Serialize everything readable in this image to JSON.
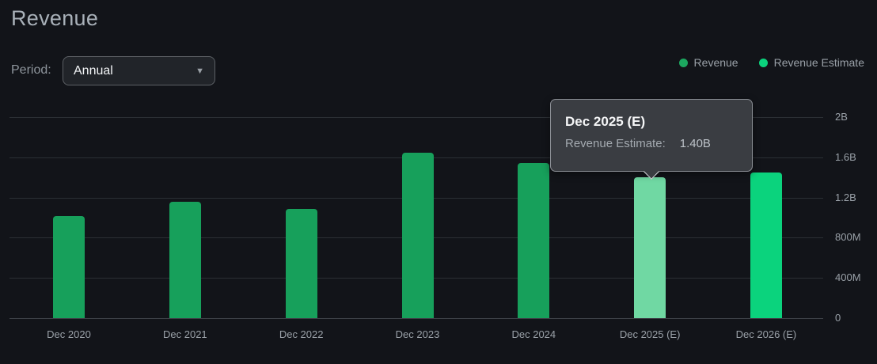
{
  "header": {
    "title": "Revenue"
  },
  "controls": {
    "period_label": "Period:",
    "period_value": "Annual",
    "dropdown_caret": "▼"
  },
  "legend": {
    "items": [
      {
        "label": "Revenue",
        "color": "#1ca75f"
      },
      {
        "label": "Revenue Estimate",
        "color": "#0bd37d"
      }
    ]
  },
  "tooltip": {
    "title": "Dec 2025 (E)",
    "label": "Revenue Estimate:",
    "value": "1.40B"
  },
  "chart_data": {
    "type": "bar",
    "title": "Revenue",
    "categories": [
      "Dec 2020",
      "Dec 2021",
      "Dec 2022",
      "Dec 2023",
      "Dec 2024",
      "Dec 2025 (E)",
      "Dec 2026 (E)"
    ],
    "series": [
      {
        "name": "Revenue",
        "values": [
          1.02,
          1.16,
          1.09,
          1.65,
          1.54,
          null,
          null
        ]
      },
      {
        "name": "Revenue Estimate",
        "values": [
          null,
          null,
          null,
          null,
          null,
          1.4,
          1.45
        ]
      }
    ],
    "unit": "billions",
    "ylim": [
      0,
      2
    ],
    "yticks": [
      {
        "label": "2B",
        "value": 2
      },
      {
        "label": "1.6B",
        "value": 1.6
      },
      {
        "label": "1.2B",
        "value": 1.2
      },
      {
        "label": "800M",
        "value": 0.8
      },
      {
        "label": "400M",
        "value": 0.4
      },
      {
        "label": "0",
        "value": 0
      }
    ],
    "grid": "horizontal",
    "legend_position": "top-right",
    "highlighted_category": "Dec 2025 (E)",
    "colors": {
      "revenue": "#17a05b",
      "estimate": "#0bd37d",
      "estimate_highlight": "#70d8a3",
      "grid": "#2b2f34",
      "tick_text": "#99a0a7"
    }
  }
}
